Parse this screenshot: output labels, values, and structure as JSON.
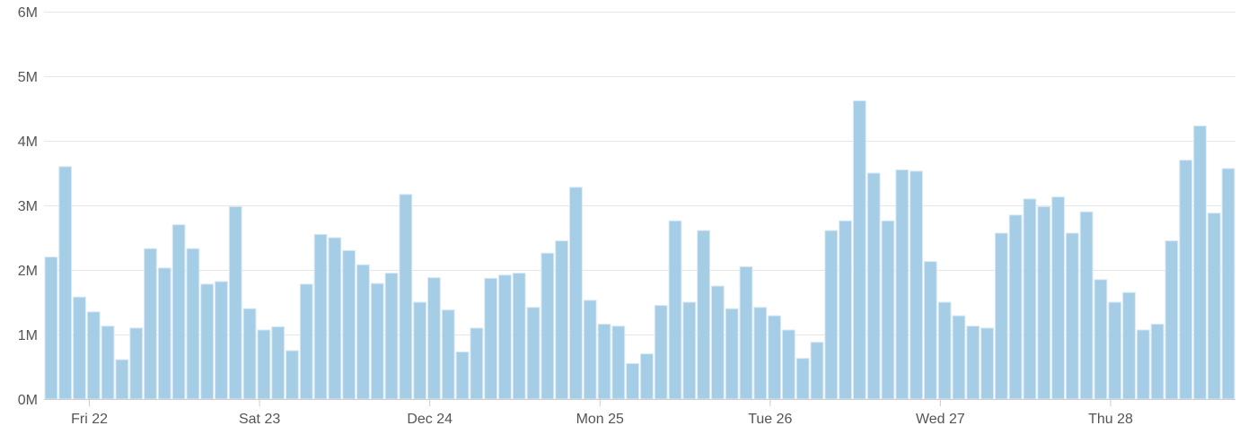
{
  "chart_data": {
    "type": "bar",
    "title": "",
    "xlabel": "",
    "ylabel": "",
    "ylim": [
      0,
      6000000
    ],
    "y_ticks": [
      0,
      1000000,
      2000000,
      3000000,
      4000000,
      5000000,
      6000000
    ],
    "y_tick_labels": [
      "0M",
      "1M",
      "2M",
      "3M",
      "4M",
      "5M",
      "6M"
    ],
    "x_tick_labels": [
      "Fri 22",
      "Sat 23",
      "Dec 24",
      "Mon 25",
      "Tue 26",
      "Wed 27",
      "Thu 28"
    ],
    "x_tick_positions": [
      3.2,
      15.2,
      27.2,
      39.2,
      51.2,
      63.2,
      75.2
    ],
    "grid": true,
    "bar_color": "#a6cde6",
    "values": [
      2200000,
      3600000,
      1580000,
      1350000,
      1130000,
      610000,
      1100000,
      2330000,
      2030000,
      2700000,
      2330000,
      1780000,
      1820000,
      2980000,
      1400000,
      1070000,
      1120000,
      750000,
      1780000,
      2550000,
      2500000,
      2300000,
      2080000,
      1790000,
      1950000,
      3170000,
      1500000,
      1880000,
      1380000,
      730000,
      1100000,
      1870000,
      1920000,
      1950000,
      1420000,
      2260000,
      2450000,
      3280000,
      1530000,
      1160000,
      1130000,
      550000,
      700000,
      1450000,
      2760000,
      1500000,
      2610000,
      1750000,
      1400000,
      2050000,
      1420000,
      1290000,
      1070000,
      630000,
      880000,
      2610000,
      2760000,
      4620000,
      3500000,
      2760000,
      3550000,
      3530000,
      2130000,
      1500000,
      1290000,
      1130000,
      1100000,
      2570000,
      2850000,
      3100000,
      2980000,
      3130000,
      2570000,
      2900000,
      1850000,
      1500000,
      1650000,
      1070000,
      1160000,
      2450000,
      3700000,
      4230000,
      2880000,
      3570000
    ]
  }
}
